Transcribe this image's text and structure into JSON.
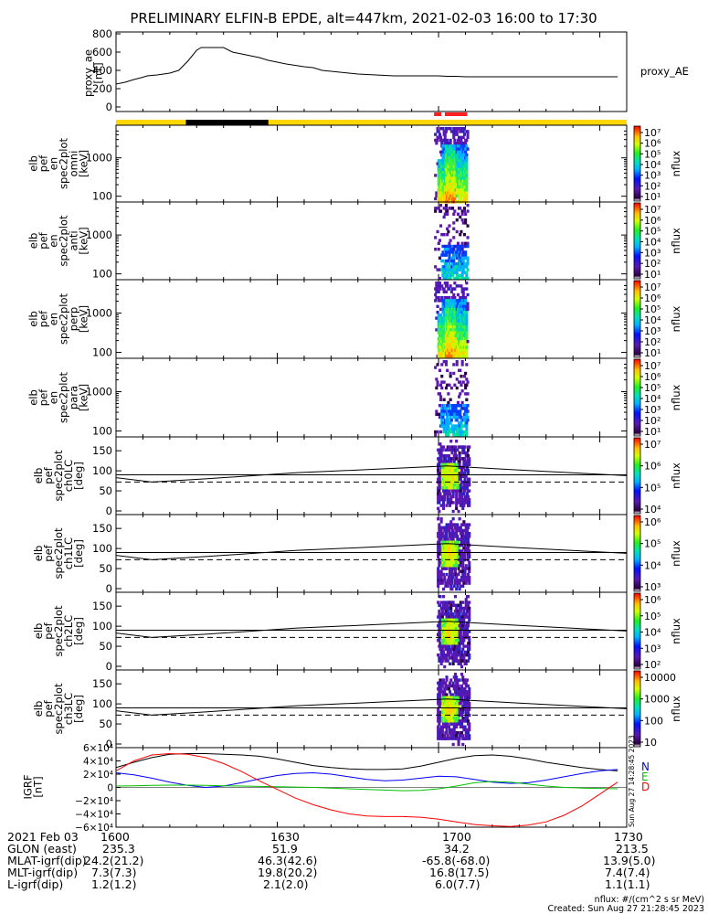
{
  "title": "PRELIMINARY ELFIN-B EPDE, alt=447km, 2021-02-03 16:00 to 17:30",
  "colors": {
    "sunlight": "#ffd700",
    "eclipse": "#000000",
    "science_zone": "#ff2020",
    "igrf_north": "#0000ff",
    "igrf_east": "#00c000",
    "igrf_down": "#ff0000",
    "igrf_total": "#000000"
  },
  "chart_data": [
    {
      "type": "line",
      "panel": "proxy_ae",
      "ylabel_lines": [
        "proxy_ae",
        "[nT]"
      ],
      "legend": "proxy_AE",
      "yticks": [
        "800",
        "600",
        "400",
        "200",
        "0"
      ],
      "ylim": [
        -50,
        820
      ],
      "x_minutes": [
        0,
        10,
        20,
        28,
        35,
        40,
        46,
        53,
        60,
        70,
        80,
        90,
        95,
        100,
        110,
        120,
        130,
        140,
        150,
        160,
        170,
        180,
        190,
        200,
        210,
        220,
        230,
        240,
        250,
        260,
        270,
        280,
        290,
        300,
        310,
        320,
        330,
        340,
        350,
        360,
        370,
        380,
        390,
        400,
        410,
        420,
        430,
        440,
        450,
        460,
        470,
        480,
        490,
        500,
        510,
        520,
        530,
        540,
        550,
        560
      ],
      "values": [
        250,
        270,
        300,
        320,
        340,
        345,
        350,
        360,
        370,
        400,
        500,
        620,
        650,
        650,
        650,
        650,
        600,
        580,
        560,
        540,
        510,
        490,
        470,
        455,
        440,
        430,
        400,
        390,
        380,
        370,
        360,
        355,
        350,
        345,
        340,
        340,
        340,
        340,
        340,
        340,
        335,
        335,
        330,
        330,
        330,
        330,
        330,
        330,
        330,
        330,
        330,
        330,
        330,
        330,
        330,
        330,
        330,
        330,
        330,
        330
      ]
    },
    {
      "type": "heatmap",
      "panel": "omni",
      "ylabel_lines": [
        "elb",
        "pef",
        "en",
        "spec2plot",
        "omni",
        "[keV]"
      ],
      "yticks": [
        "1000",
        "100"
      ],
      "colorbar_label": "nflux",
      "colorbar_ticks": [
        "10⁷",
        "10⁶",
        "10⁵",
        "10⁴",
        "10³",
        "10²",
        "10¹"
      ]
    },
    {
      "type": "heatmap",
      "panel": "anti",
      "ylabel_lines": [
        "elb",
        "pef",
        "en",
        "spec2plot",
        "anti",
        "[keV]"
      ],
      "yticks": [
        "1000",
        "100"
      ],
      "colorbar_label": "nflux",
      "colorbar_ticks": [
        "10⁷",
        "10⁶",
        "10⁵",
        "10⁴",
        "10³",
        "10²",
        "10¹"
      ]
    },
    {
      "type": "heatmap",
      "panel": "perp",
      "ylabel_lines": [
        "elb",
        "pef",
        "en",
        "spec2plot",
        "perp",
        "[keV]"
      ],
      "yticks": [
        "1000",
        "100"
      ],
      "colorbar_label": "nflux",
      "colorbar_ticks": [
        "10⁷",
        "10⁶",
        "10⁵",
        "10⁴",
        "10³",
        "10²",
        "10¹"
      ]
    },
    {
      "type": "heatmap",
      "panel": "para",
      "ylabel_lines": [
        "elb",
        "pef",
        "en",
        "spec2plot",
        "para",
        "[keV]"
      ],
      "yticks": [
        "1000",
        "100"
      ],
      "colorbar_label": "nflux",
      "colorbar_ticks": [
        "10⁷",
        "10⁶",
        "10⁵",
        "10⁴",
        "10³",
        "10²",
        "10¹"
      ]
    },
    {
      "type": "heatmap",
      "panel": "ch0LC",
      "ylabel_lines": [
        "elb",
        "pef",
        "spec2plot",
        "ch0LC",
        "[deg]"
      ],
      "yticks": [
        "150",
        "100",
        "50",
        "0"
      ],
      "colorbar_label": "nflux",
      "colorbar_ticks": [
        "10⁷",
        "10⁶",
        "10⁵",
        "10⁴"
      ]
    },
    {
      "type": "heatmap",
      "panel": "ch1LC",
      "ylabel_lines": [
        "elb",
        "pef",
        "spec2plot",
        "ch1LC",
        "[deg]"
      ],
      "yticks": [
        "150",
        "100",
        "50",
        "0"
      ],
      "colorbar_label": "nflux",
      "colorbar_ticks": [
        "10⁶",
        "10⁵",
        "10⁴",
        "10³"
      ]
    },
    {
      "type": "heatmap",
      "panel": "ch2LC",
      "ylabel_lines": [
        "elb",
        "pef",
        "spec2plot",
        "ch2LC",
        "[deg]"
      ],
      "yticks": [
        "150",
        "100",
        "50",
        "0"
      ],
      "colorbar_label": "nflux",
      "colorbar_ticks": [
        "10⁶",
        "10⁵",
        "10⁴",
        "10³",
        "10²"
      ]
    },
    {
      "type": "heatmap",
      "panel": "ch3LC",
      "ylabel_lines": [
        "elb",
        "pef",
        "spec2plot",
        "ch3LC",
        "[deg]"
      ],
      "yticks": [
        "150",
        "100",
        "50",
        "0"
      ],
      "colorbar_label": "nflux",
      "colorbar_ticks": [
        "10000",
        "1000",
        "100",
        "10"
      ]
    },
    {
      "type": "line",
      "panel": "igrf",
      "ylabel_lines": [
        "IGRF",
        "[nT]"
      ],
      "yticks": [
        "6×10⁴",
        "4×10⁴",
        "2×10⁴",
        "0",
        "−2×10⁴",
        "−4×10⁴",
        "−6×10⁴"
      ],
      "ylim": [
        -60000,
        60000
      ],
      "legend_letters": [
        "N",
        "E",
        "D"
      ],
      "x_minutes": [
        0,
        20,
        40,
        60,
        80,
        100,
        120,
        140,
        160,
        180,
        200,
        220,
        240,
        260,
        280,
        300,
        320,
        340,
        360,
        380,
        400,
        420,
        440,
        460,
        480,
        500,
        520,
        540,
        560
      ],
      "series": [
        {
          "key": "total",
          "values": [
            30000,
            38000,
            45000,
            50000,
            51000,
            51000,
            50000,
            49000,
            47000,
            43000,
            38000,
            33000,
            30000,
            28000,
            27000,
            27000,
            28000,
            32000,
            38000,
            44000,
            48000,
            49000,
            47000,
            43000,
            38000,
            34000,
            30000,
            27000,
            25000
          ]
        },
        {
          "key": "north",
          "values": [
            22000,
            19000,
            14000,
            8000,
            3000,
            0,
            2000,
            7000,
            13000,
            18000,
            21000,
            22000,
            20000,
            16000,
            12000,
            10000,
            11000,
            14000,
            17000,
            16000,
            12000,
            8000,
            6000,
            7000,
            11000,
            16000,
            21000,
            25000,
            27000
          ]
        },
        {
          "key": "east",
          "values": [
            2000,
            2500,
            3000,
            3500,
            3500,
            3000,
            2500,
            2000,
            1500,
            1000,
            500,
            0,
            -1000,
            -2000,
            -3000,
            -4000,
            -5000,
            -4500,
            -2000,
            2000,
            7000,
            9000,
            8000,
            5000,
            2000,
            0,
            -1000,
            -1500,
            -2000
          ]
        },
        {
          "key": "down",
          "values": [
            25000,
            40000,
            49000,
            51000,
            50000,
            45000,
            36000,
            24000,
            10000,
            -3000,
            -16000,
            -26000,
            -34000,
            -40000,
            -43000,
            -44000,
            -44000,
            -45000,
            -48000,
            -52000,
            -56000,
            -58000,
            -59000,
            -57000,
            -52000,
            -42000,
            -28000,
            -10000,
            8000
          ]
        }
      ]
    }
  ],
  "x_axis": {
    "date_label": "2021 Feb 03",
    "ticks": [
      "1600",
      "1630",
      "1700",
      "1730"
    ]
  },
  "orbit_table": [
    {
      "label": "GLON (east)",
      "values": [
        "235.3",
        "51.9",
        "34.2",
        "213.5"
      ]
    },
    {
      "label": "MLAT-igrf(dip)",
      "values": [
        "24.2(21.2)",
        "46.3(42.6)",
        "-65.8(-68.0)",
        "13.9(5.0)"
      ]
    },
    {
      "label": "MLT-igrf(dip)",
      "values": [
        "7.3(7.3)",
        "19.8(20.2)",
        "16.8(17.5)",
        "7.4(7.4)"
      ]
    },
    {
      "label": "L-igrf(dip)",
      "values": [
        "1.2(1.2)",
        "2.1(2.0)",
        "6.0(7.7)",
        "1.1(1.1)"
      ]
    }
  ],
  "stamp": "Sun Aug 27 14:28:45 2023",
  "footer": {
    "units": "nflux: #/(cm^2 s sr MeV)",
    "created": "Created: Sun Aug 27 21:28:45 2023"
  }
}
